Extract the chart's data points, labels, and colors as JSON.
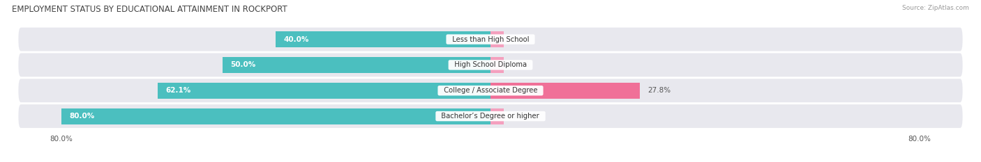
{
  "title": "EMPLOYMENT STATUS BY EDUCATIONAL ATTAINMENT IN ROCKPORT",
  "source": "Source: ZipAtlas.com",
  "categories": [
    "Less than High School",
    "High School Diploma",
    "College / Associate Degree",
    "Bachelor’s Degree or higher"
  ],
  "labor_force": [
    40.0,
    50.0,
    62.1,
    80.0
  ],
  "unemployed": [
    0.0,
    0.0,
    27.8,
    0.0
  ],
  "max_val": 80.0,
  "labor_color": "#4bbfbf",
  "unemployed_color": "#f07098",
  "unemployed_color_light": "#f4a0be",
  "row_bg_color": "#e8e8ee",
  "title_fontsize": 8.5,
  "label_fontsize": 7.5,
  "tick_fontsize": 7.5,
  "legend_fontsize": 7.5,
  "source_fontsize": 6.5
}
